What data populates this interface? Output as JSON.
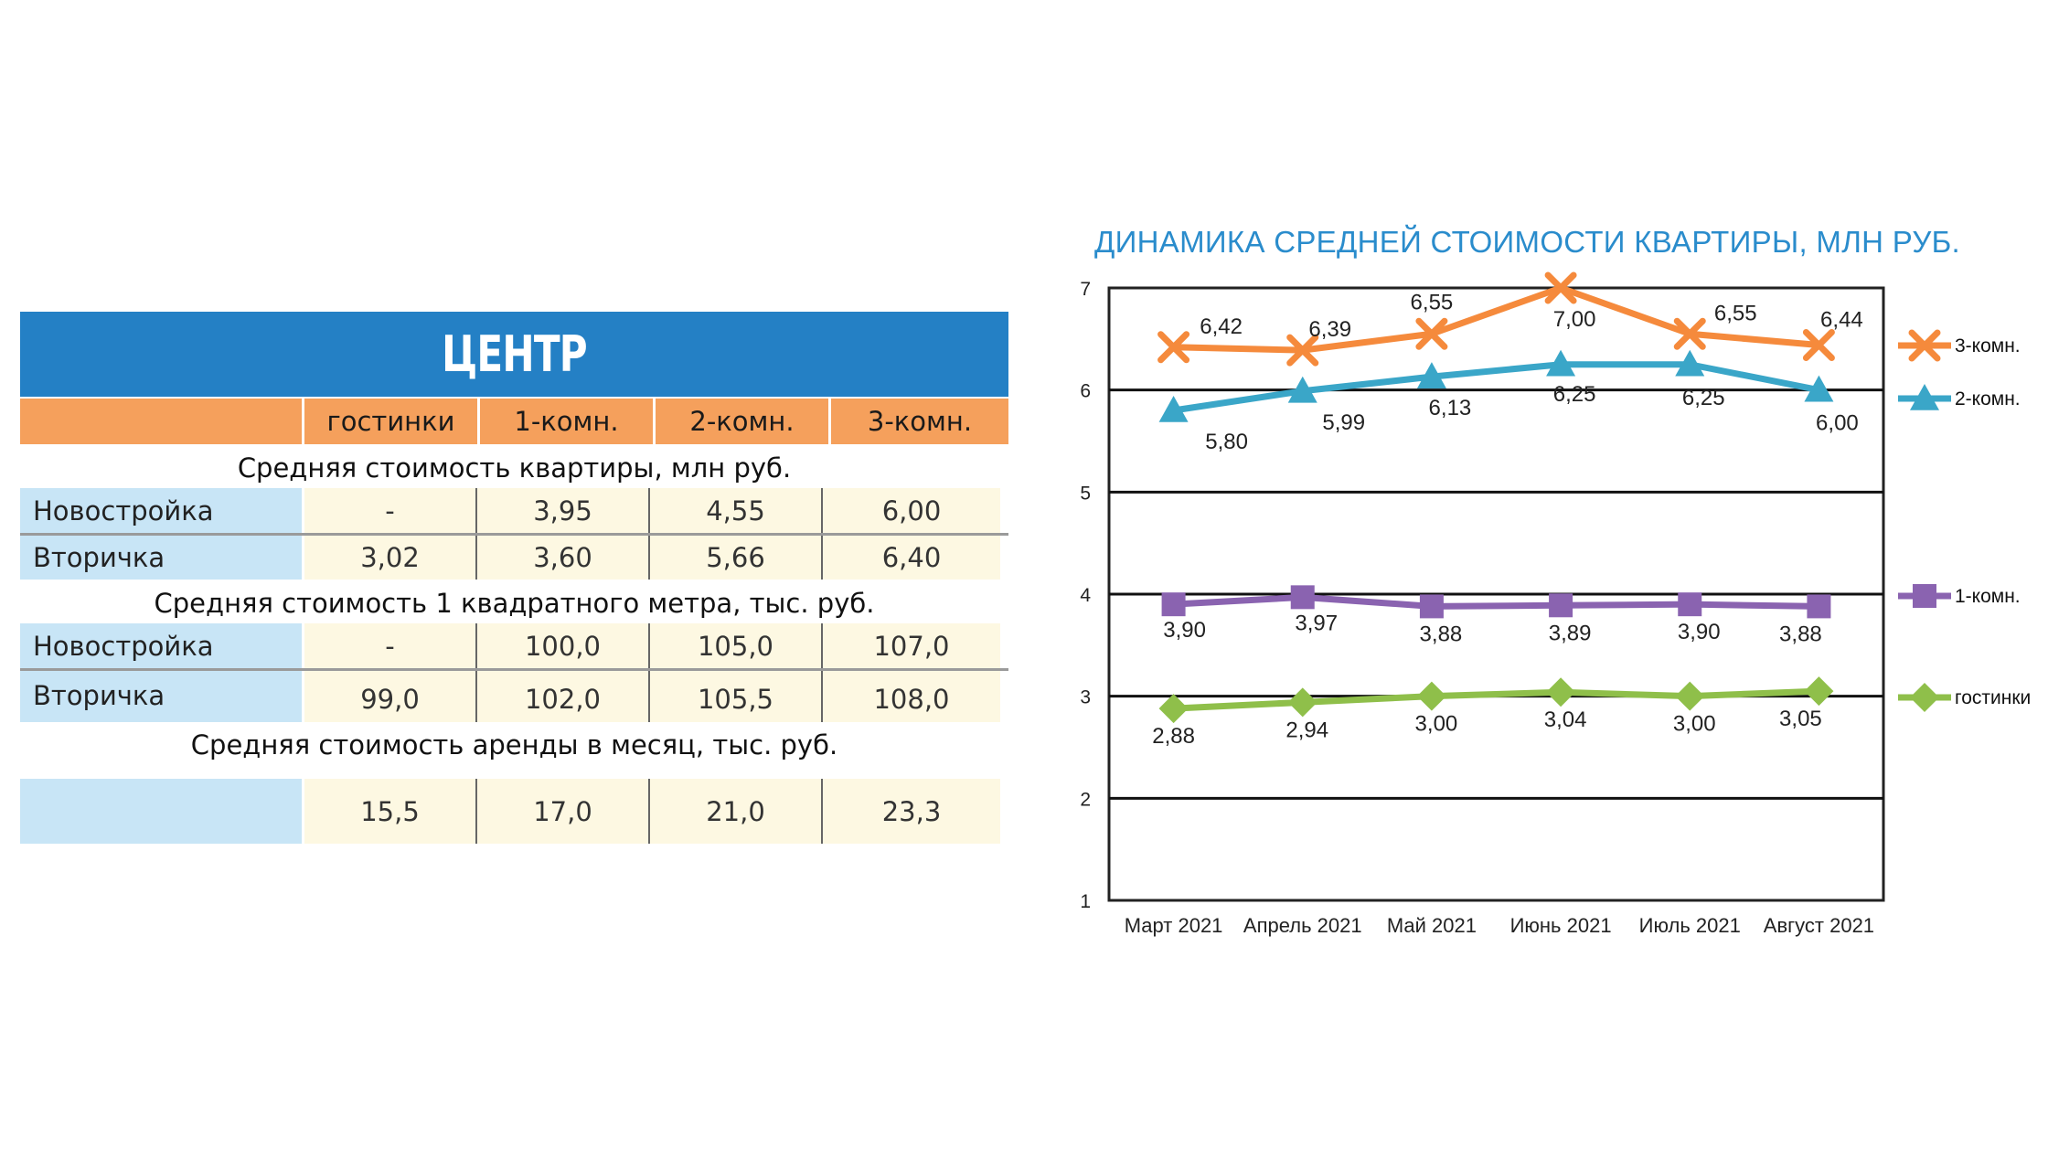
{
  "table": {
    "banner": "ЦЕНТР",
    "headers": [
      "",
      "гостинки",
      "1-комн.",
      "2-комн.",
      "3-комн."
    ],
    "sections": [
      {
        "title": "Средняя стоимость квартиры, млн руб.",
        "rows": [
          {
            "label": "Новостройка",
            "values": [
              "-",
              "3,95",
              "4,55",
              "6,00"
            ]
          },
          {
            "label": "Вторичка",
            "values": [
              "3,02",
              "3,60",
              "5,66",
              "6,40"
            ]
          }
        ]
      },
      {
        "title": "Средняя стоимость 1 квадратного метра, тыс. руб.",
        "rows": [
          {
            "label": "Новостройка",
            "values": [
              "-",
              "100,0",
              "105,0",
              "107,0"
            ]
          },
          {
            "label": "Вторичка",
            "values": [
              "99,0",
              "102,0",
              "105,5",
              "108,0"
            ]
          }
        ]
      },
      {
        "title": "Средняя стоимость аренды в месяц, тыс. руб.",
        "rows": [
          {
            "label": "",
            "values": [
              "15,5",
              "17,0",
              "21,0",
              "23,3"
            ]
          }
        ]
      }
    ]
  },
  "chart_data": {
    "type": "line",
    "title": "ДИНАМИКА СРЕДНЕЙ СТОИМОСТИ КВАРТИРЫ, МЛН РУБ.",
    "categories": [
      "Март 2021",
      "Апрель 2021",
      "Май 2021",
      "Июнь 2021",
      "Июль 2021",
      "Август 2021"
    ],
    "ylim": [
      1,
      7
    ],
    "yticks": [
      1,
      2,
      3,
      4,
      5,
      6,
      7
    ],
    "grid": true,
    "legend": "right",
    "series": [
      {
        "name": "3-комн.",
        "color": "#f58a3c",
        "marker": "x",
        "values": [
          6.42,
          6.39,
          6.55,
          7.0,
          6.55,
          6.44
        ],
        "labels": [
          "6,42",
          "6,39",
          "6,55",
          "7,00",
          "6,55",
          "6,44"
        ]
      },
      {
        "name": "2-комн.",
        "color": "#3aa6c8",
        "marker": "triangle",
        "values": [
          5.8,
          5.99,
          6.13,
          6.25,
          6.25,
          6.0
        ],
        "labels": [
          "5,80",
          "5,99",
          "6,13",
          "6,25",
          "6,25",
          "6,00"
        ]
      },
      {
        "name": "1-комн.",
        "color": "#8a63b0",
        "marker": "square",
        "values": [
          3.9,
          3.97,
          3.88,
          3.89,
          3.9,
          3.88
        ],
        "labels": [
          "3,90",
          "3,97",
          "3,88",
          "3,89",
          "3,90",
          "3,88"
        ]
      },
      {
        "name": "гостинки",
        "color": "#8fbf4a",
        "marker": "diamond",
        "values": [
          2.88,
          2.94,
          3.0,
          3.04,
          3.0,
          3.05
        ],
        "labels": [
          "2,88",
          "2,94",
          "3,00",
          "3,04",
          "3,00",
          "3,05"
        ]
      }
    ]
  }
}
